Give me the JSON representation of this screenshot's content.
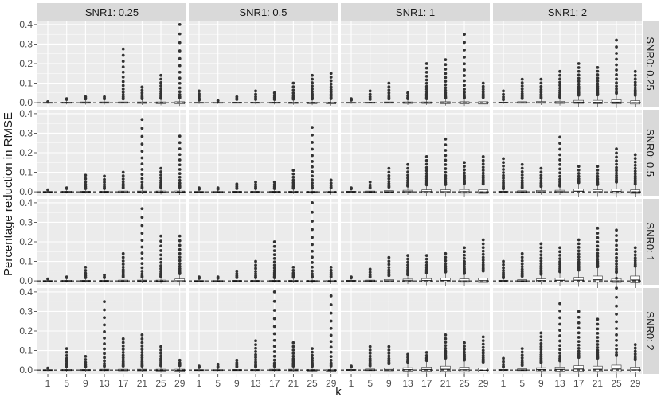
{
  "chart_data": {
    "type": "boxplot",
    "title": "",
    "xlabel": "k",
    "ylabel": "Percentage reduction in RMSE",
    "x_ticks": [
      "1",
      "5",
      "9",
      "13",
      "17",
      "21",
      "25",
      "29"
    ],
    "y_ticks": [
      "0.0",
      "0.1",
      "0.2",
      "0.3",
      "0.4"
    ],
    "ylim": [
      -0.02,
      0.42
    ],
    "reference_line": {
      "y": 0,
      "style": "dashed"
    },
    "column_strips": [
      "SNR1: 0.25",
      "SNR1: 0.5",
      "SNR1: 1",
      "SNR1: 2"
    ],
    "row_strips": [
      "SNR0: 0.25",
      "SNR0: 0.5",
      "SNR0: 1",
      "SNR0: 2"
    ],
    "panels": [
      [
        {
          "max_outlier": [
            0.005,
            0.02,
            0.03,
            0.03,
            0.275,
            0.08,
            0.14,
            0.4
          ],
          "q3": [
            0.002,
            0.003,
            0.004,
            0.004,
            0.004,
            0.004,
            0.004,
            0.005
          ],
          "q1": [
            -0.002,
            -0.003,
            -0.003,
            -0.003,
            -0.003,
            -0.004,
            -0.005,
            -0.006
          ]
        },
        {
          "max_outlier": [
            0.06,
            0.01,
            0.03,
            0.06,
            0.05,
            0.1,
            0.14,
            0.15
          ],
          "q3": [
            0.002,
            0.002,
            0.003,
            0.003,
            0.003,
            0.003,
            0.003,
            0.003
          ],
          "q1": [
            -0.002,
            -0.002,
            -0.003,
            -0.003,
            -0.003,
            -0.004,
            -0.005,
            -0.006
          ]
        },
        {
          "max_outlier": [
            0.02,
            0.06,
            0.1,
            0.05,
            0.2,
            0.22,
            0.35,
            0.1
          ],
          "q3": [
            0.002,
            0.003,
            0.004,
            0.004,
            0.004,
            0.005,
            0.005,
            0.005
          ],
          "q1": [
            -0.002,
            -0.003,
            -0.003,
            -0.004,
            -0.004,
            -0.005,
            -0.006,
            -0.007
          ]
        },
        {
          "max_outlier": [
            0.06,
            0.12,
            0.12,
            0.16,
            0.2,
            0.18,
            0.32,
            0.16
          ],
          "q3": [
            0.003,
            0.005,
            0.006,
            0.007,
            0.012,
            0.012,
            0.015,
            0.01
          ],
          "q1": [
            -0.002,
            -0.003,
            -0.003,
            -0.004,
            -0.004,
            -0.005,
            -0.006,
            -0.007
          ]
        }
      ],
      [
        {
          "max_outlier": [
            0.01,
            0.02,
            0.085,
            0.08,
            0.1,
            0.37,
            0.12,
            0.285
          ],
          "q3": [
            0.002,
            0.003,
            0.003,
            0.003,
            0.004,
            0.004,
            0.004,
            0.004
          ],
          "q1": [
            -0.002,
            -0.003,
            -0.003,
            -0.003,
            -0.004,
            -0.004,
            -0.005,
            -0.006
          ]
        },
        {
          "max_outlier": [
            0.02,
            0.02,
            0.04,
            0.05,
            0.05,
            0.11,
            0.33,
            0.06
          ],
          "q3": [
            0.002,
            0.002,
            0.003,
            0.003,
            0.003,
            0.003,
            0.003,
            0.003
          ],
          "q1": [
            -0.002,
            -0.002,
            -0.003,
            -0.003,
            -0.003,
            -0.004,
            -0.005,
            -0.006
          ]
        },
        {
          "max_outlier": [
            0.02,
            0.05,
            0.12,
            0.14,
            0.18,
            0.27,
            0.15,
            0.18
          ],
          "q3": [
            0.003,
            0.004,
            0.006,
            0.008,
            0.01,
            0.01,
            0.012,
            0.01
          ],
          "q1": [
            -0.002,
            -0.003,
            -0.003,
            -0.004,
            -0.005,
            -0.006,
            -0.007,
            -0.008
          ]
        },
        {
          "max_outlier": [
            0.17,
            0.14,
            0.12,
            0.28,
            0.13,
            0.13,
            0.22,
            0.19
          ],
          "q3": [
            0.003,
            0.005,
            0.007,
            0.008,
            0.015,
            0.01,
            0.015,
            0.01
          ],
          "q1": [
            -0.002,
            -0.003,
            -0.004,
            -0.004,
            -0.005,
            -0.006,
            -0.007,
            -0.008
          ]
        }
      ],
      [
        {
          "max_outlier": [
            0.01,
            0.02,
            0.07,
            0.03,
            0.14,
            0.37,
            0.23,
            0.23
          ],
          "q3": [
            0.002,
            0.003,
            0.003,
            0.003,
            0.004,
            0.004,
            0.004,
            0.01
          ],
          "q1": [
            -0.002,
            -0.003,
            -0.003,
            -0.003,
            -0.004,
            -0.004,
            -0.005,
            -0.006
          ]
        },
        {
          "max_outlier": [
            0.02,
            0.02,
            0.05,
            0.1,
            0.2,
            0.07,
            0.4,
            0.07
          ],
          "q3": [
            0.002,
            0.002,
            0.003,
            0.003,
            0.003,
            0.003,
            0.003,
            0.003
          ],
          "q1": [
            -0.002,
            -0.002,
            -0.003,
            -0.003,
            -0.003,
            -0.004,
            -0.005,
            -0.006
          ]
        },
        {
          "max_outlier": [
            0.02,
            0.06,
            0.12,
            0.13,
            0.13,
            0.14,
            0.17,
            0.21
          ],
          "q3": [
            0.003,
            0.004,
            0.007,
            0.009,
            0.012,
            0.014,
            0.01,
            0.015
          ],
          "q1": [
            -0.002,
            -0.003,
            -0.004,
            -0.004,
            -0.005,
            -0.006,
            -0.007,
            -0.008
          ]
        },
        {
          "max_outlier": [
            0.1,
            0.14,
            0.19,
            0.17,
            0.21,
            0.27,
            0.26,
            0.17
          ],
          "q3": [
            0.003,
            0.006,
            0.01,
            0.015,
            0.018,
            0.025,
            0.012,
            0.025
          ],
          "q1": [
            -0.002,
            -0.003,
            -0.004,
            -0.005,
            -0.006,
            -0.007,
            -0.008,
            -0.009
          ]
        }
      ],
      [
        {
          "max_outlier": [
            0.01,
            0.11,
            0.07,
            0.35,
            0.16,
            0.18,
            0.12,
            0.05
          ],
          "q3": [
            0.002,
            0.003,
            0.003,
            0.004,
            0.004,
            0.004,
            0.004,
            0.004
          ],
          "q1": [
            -0.002,
            -0.003,
            -0.003,
            -0.003,
            -0.004,
            -0.004,
            -0.005,
            -0.006
          ]
        },
        {
          "max_outlier": [
            0.02,
            0.03,
            0.05,
            0.15,
            0.4,
            0.14,
            0.11,
            0.38
          ],
          "q3": [
            0.002,
            0.002,
            0.003,
            0.003,
            0.004,
            0.004,
            0.003,
            0.003
          ],
          "q1": [
            -0.002,
            -0.002,
            -0.003,
            -0.003,
            -0.003,
            -0.004,
            -0.005,
            -0.006
          ]
        },
        {
          "max_outlier": [
            0.02,
            0.12,
            0.12,
            0.08,
            0.09,
            0.18,
            0.14,
            0.17
          ],
          "q3": [
            0.003,
            0.005,
            0.009,
            0.012,
            0.015,
            0.02,
            0.015,
            0.01
          ],
          "q1": [
            -0.002,
            -0.003,
            -0.004,
            -0.005,
            -0.006,
            -0.007,
            -0.008,
            -0.009
          ]
        },
        {
          "max_outlier": [
            0.06,
            0.11,
            0.19,
            0.34,
            0.3,
            0.26,
            0.47,
            0.13
          ],
          "q3": [
            0.003,
            0.006,
            0.012,
            0.015,
            0.022,
            0.02,
            0.025,
            0.015
          ],
          "q1": [
            -0.002,
            -0.003,
            -0.004,
            -0.005,
            -0.006,
            -0.007,
            -0.008,
            -0.009
          ]
        }
      ]
    ]
  },
  "colors": {
    "panel_background": "#ebebeb",
    "grid": "#ffffff",
    "strip_background": "#d9d9d9",
    "box_fill": "#ffffff",
    "box_stroke": "#333333",
    "outlier": "#333333",
    "reference_line": "#000000",
    "text": "#1a1a1a",
    "tick_text": "#4d4d4d"
  }
}
